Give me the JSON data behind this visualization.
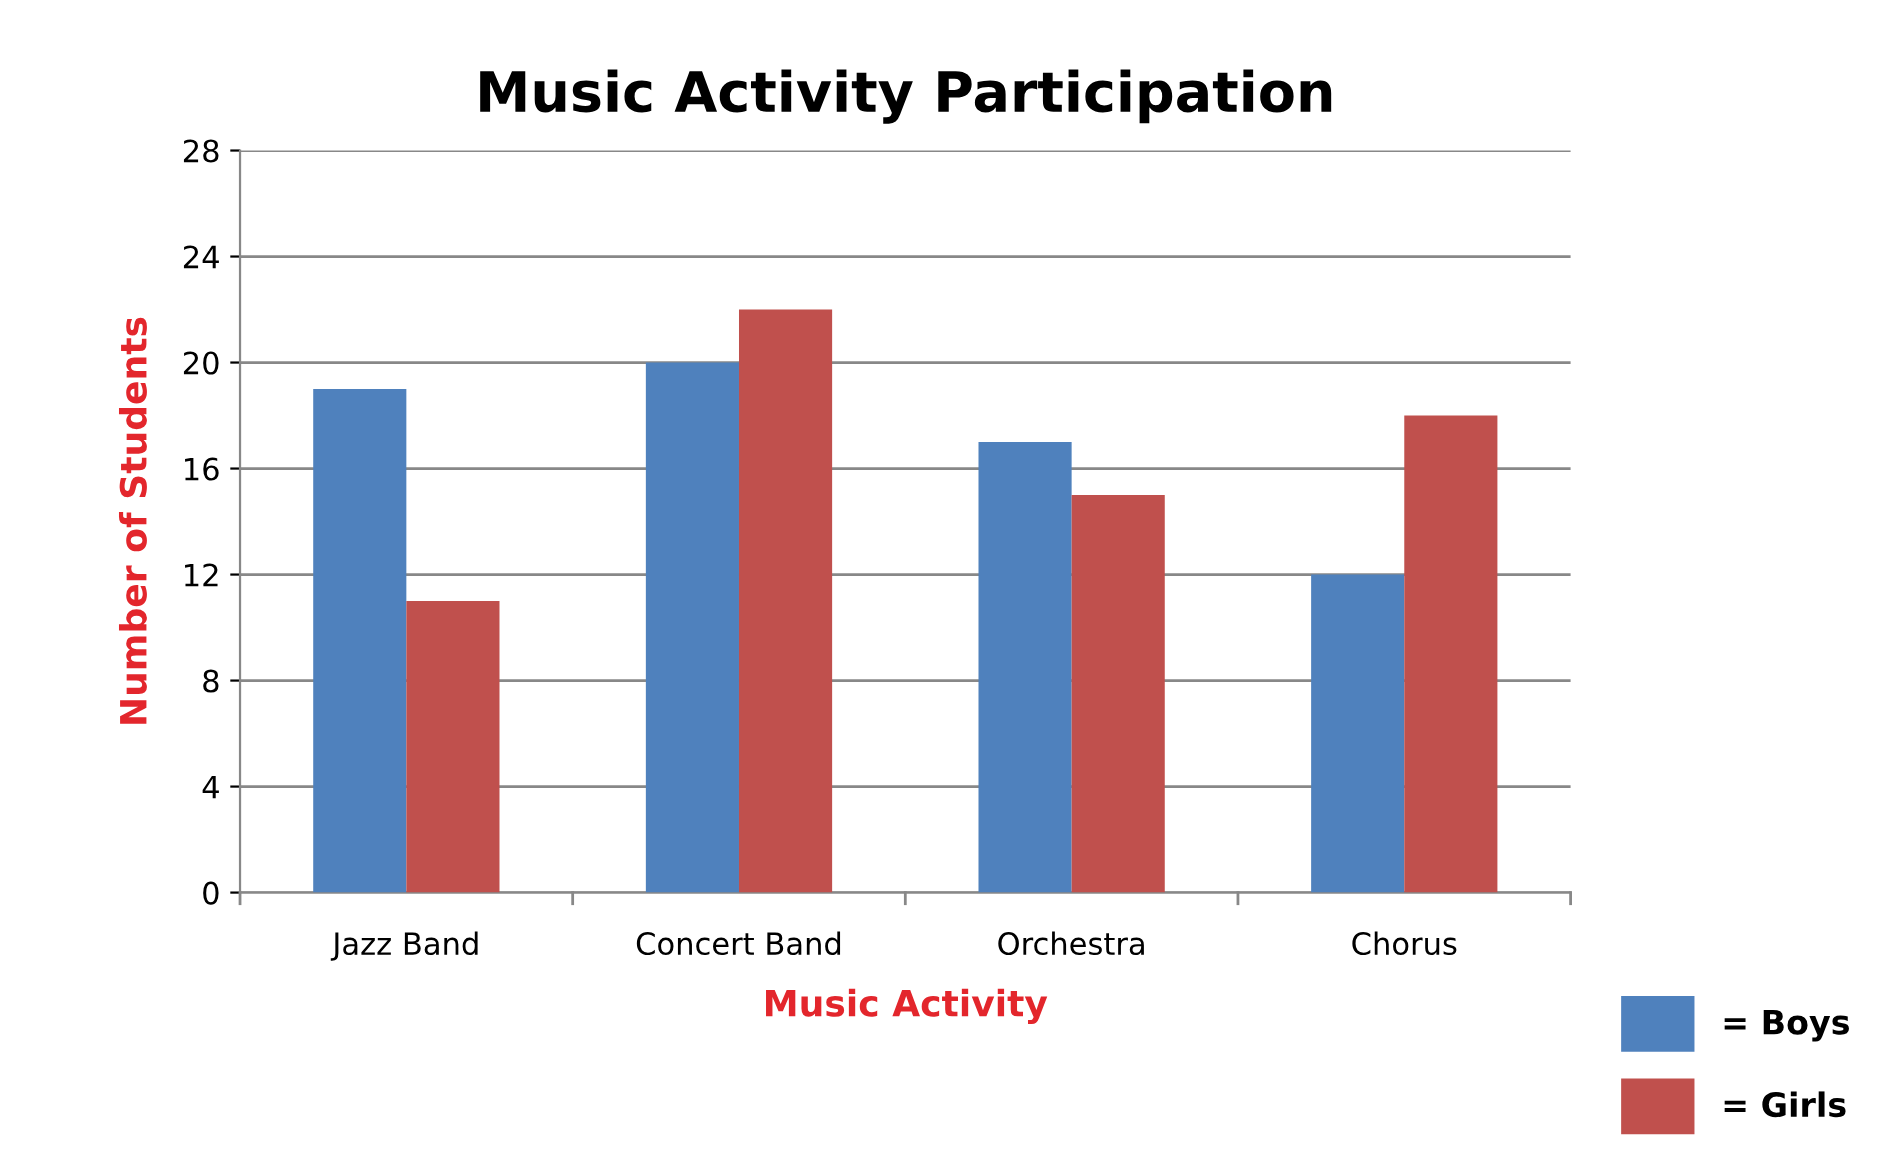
{
  "chart_data": {
    "type": "bar",
    "title": "Music Activity Participation",
    "xlabel": "Music Activity",
    "ylabel": "Number of Students",
    "categories": [
      "Jazz Band",
      "Concert Band",
      "Orchestra",
      "Chorus"
    ],
    "series": [
      {
        "name": "= Boys",
        "color": "#4f81bd",
        "values": [
          19,
          20,
          17,
          12
        ]
      },
      {
        "name": "= Girls",
        "color": "#c0504d",
        "values": [
          11,
          22,
          15,
          18
        ]
      }
    ],
    "ylim": [
      0,
      28
    ],
    "yticks": [
      0,
      4,
      8,
      12,
      16,
      20,
      24,
      28
    ],
    "grid": "y",
    "legend": "bottom right"
  }
}
